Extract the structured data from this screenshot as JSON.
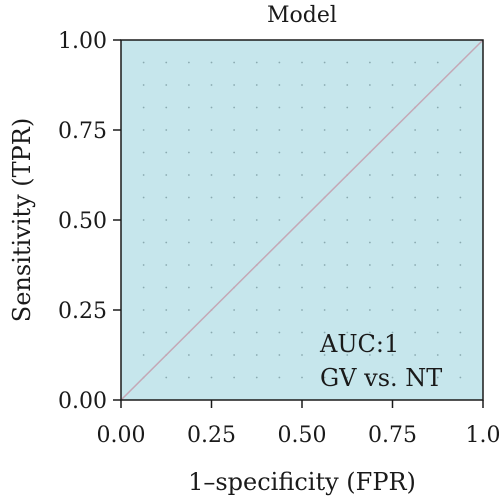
{
  "chart_data": {
    "type": "line",
    "title": "Model",
    "xlabel": "1–specificity (FPR)",
    "ylabel": "Sensitivity (TPR)",
    "xlim": [
      0,
      1
    ],
    "ylim": [
      0,
      1
    ],
    "x_ticks": [
      "0.00",
      "0.25",
      "0.50",
      "0.75",
      "1.0"
    ],
    "y_ticks": [
      "0.00",
      "0.25",
      "0.50",
      "0.75",
      "1.00"
    ],
    "grid": "dotted",
    "series": [
      {
        "x": [
          0,
          1
        ],
        "y": [
          0,
          1
        ],
        "color": "#c4a8b6"
      }
    ],
    "annotations": [
      "AUC:1",
      "GV vs. NT"
    ],
    "colors": {
      "panel_background": "#c6e6ec",
      "line": "#c4a8b6"
    }
  }
}
